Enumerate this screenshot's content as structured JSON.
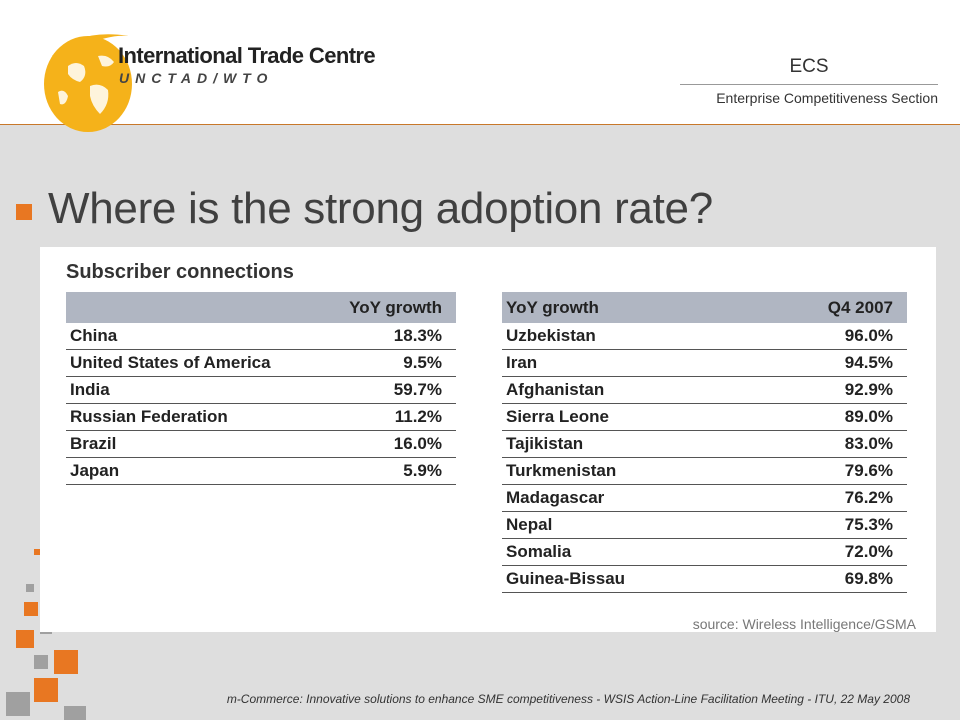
{
  "header": {
    "logo_title": "International Trade Centre",
    "logo_subtitle": "UNCTAD/WTO",
    "section_short": "ECS",
    "section_full": "Enterprise Competitiveness Section"
  },
  "slide": {
    "title": "Where is the strong adoption rate?"
  },
  "figure": {
    "heading": "Subscriber connections",
    "left_table": {
      "headers": [
        "",
        "YoY growth"
      ],
      "rows": [
        {
          "country": "China",
          "value": "18.3%"
        },
        {
          "country": "United States of America",
          "value": "9.5%"
        },
        {
          "country": "India",
          "value": "59.7%"
        },
        {
          "country": "Russian Federation",
          "value": "11.2%"
        },
        {
          "country": "Brazil",
          "value": "16.0%"
        },
        {
          "country": "Japan",
          "value": "5.9%"
        }
      ]
    },
    "right_table": {
      "headers": [
        "YoY growth",
        "Q4 2007"
      ],
      "rows": [
        {
          "country": "Uzbekistan",
          "value": "96.0%"
        },
        {
          "country": "Iran",
          "value": "94.5%"
        },
        {
          "country": "Afghanistan",
          "value": "92.9%"
        },
        {
          "country": "Sierra Leone",
          "value": "89.0%"
        },
        {
          "country": "Tajikistan",
          "value": "83.0%"
        },
        {
          "country": "Turkmenistan",
          "value": "79.6%"
        },
        {
          "country": "Madagascar",
          "value": "76.2%"
        },
        {
          "country": "Nepal",
          "value": "75.3%"
        },
        {
          "country": "Somalia",
          "value": "72.0%"
        },
        {
          "country": "Guinea-Bissau",
          "value": "69.8%"
        }
      ]
    },
    "source": "source: Wireless Intelligence/GSMA"
  },
  "footer": {
    "text": "m-Commerce: Innovative solutions to enhance SME competitiveness - WSIS Action-Line Facilitation Meeting - ITU, 22 May 2008"
  },
  "colors": {
    "accent_orange": "#e87722",
    "logo_yellow": "#f5b21a",
    "table_header": "#b0b6c2",
    "content_bg": "#dedede"
  }
}
